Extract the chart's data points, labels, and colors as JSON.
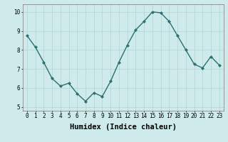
{
  "x": [
    0,
    1,
    2,
    3,
    4,
    5,
    6,
    7,
    8,
    9,
    10,
    11,
    12,
    13,
    14,
    15,
    16,
    17,
    18,
    19,
    20,
    21,
    22,
    23
  ],
  "y": [
    8.75,
    8.15,
    7.35,
    6.5,
    6.1,
    6.25,
    5.7,
    5.3,
    5.75,
    5.55,
    6.35,
    7.35,
    8.25,
    9.05,
    9.5,
    10.0,
    9.95,
    9.5,
    8.75,
    8.0,
    7.25,
    7.05,
    7.65,
    7.2
  ],
  "line_color": "#2d7070",
  "marker": "D",
  "marker_size": 2,
  "bg_color": "#ceeaea",
  "grid_color": "#b0d4d4",
  "xlabel": "Humidex (Indice chaleur)",
  "ylim": [
    4.8,
    10.4
  ],
  "xlim": [
    -0.5,
    23.5
  ],
  "yticks": [
    5,
    6,
    7,
    8,
    9,
    10
  ],
  "xticks": [
    0,
    1,
    2,
    3,
    4,
    5,
    6,
    7,
    8,
    9,
    10,
    11,
    12,
    13,
    14,
    15,
    16,
    17,
    18,
    19,
    20,
    21,
    22,
    23
  ],
  "tick_label_fontsize": 5.5,
  "xlabel_fontsize": 7.5
}
